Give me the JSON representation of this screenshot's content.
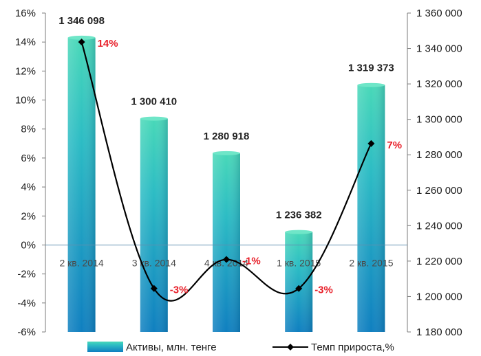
{
  "chart_data": {
    "type": "bar",
    "categories": [
      "2 кв. 2014",
      "3 кв. 2014",
      "4 кв. 2014",
      "1 кв. 2015",
      "2 кв. 2015"
    ],
    "series": [
      {
        "name": "Активы, млн. тенге",
        "type": "bar",
        "axis": "right",
        "values": [
          1346098,
          1300410,
          1280918,
          1236382,
          1319373
        ],
        "labels": [
          "1 346 098",
          "1 300 410",
          "1 280 918",
          "1 236 382",
          "1 319 373"
        ],
        "color": "#1fa5c0"
      },
      {
        "name": "Темп прироста,%",
        "type": "line",
        "axis": "left",
        "values": [
          14,
          -3,
          -1,
          -3,
          7
        ],
        "labels": [
          "14%",
          "-3%",
          "-1%",
          "-3%",
          "7%"
        ],
        "color": "#000000"
      }
    ],
    "y_left": {
      "min": -6,
      "max": 16,
      "step": 2,
      "ticks": [
        "-6%",
        "-4%",
        "-2%",
        "0%",
        "2%",
        "4%",
        "6%",
        "8%",
        "10%",
        "12%",
        "14%",
        "16%"
      ]
    },
    "y_right": {
      "min": 1180000,
      "max": 1360000,
      "step": 20000,
      "ticks": [
        "1 180 000",
        "1 200 000",
        "1 220 000",
        "1 240 000",
        "1 260 000",
        "1 280 000",
        "1 300 000",
        "1 320 000",
        "1 340 000",
        "1 360 000"
      ]
    },
    "grid": false,
    "legend_position": "bottom",
    "label_color": "#e8202a"
  }
}
